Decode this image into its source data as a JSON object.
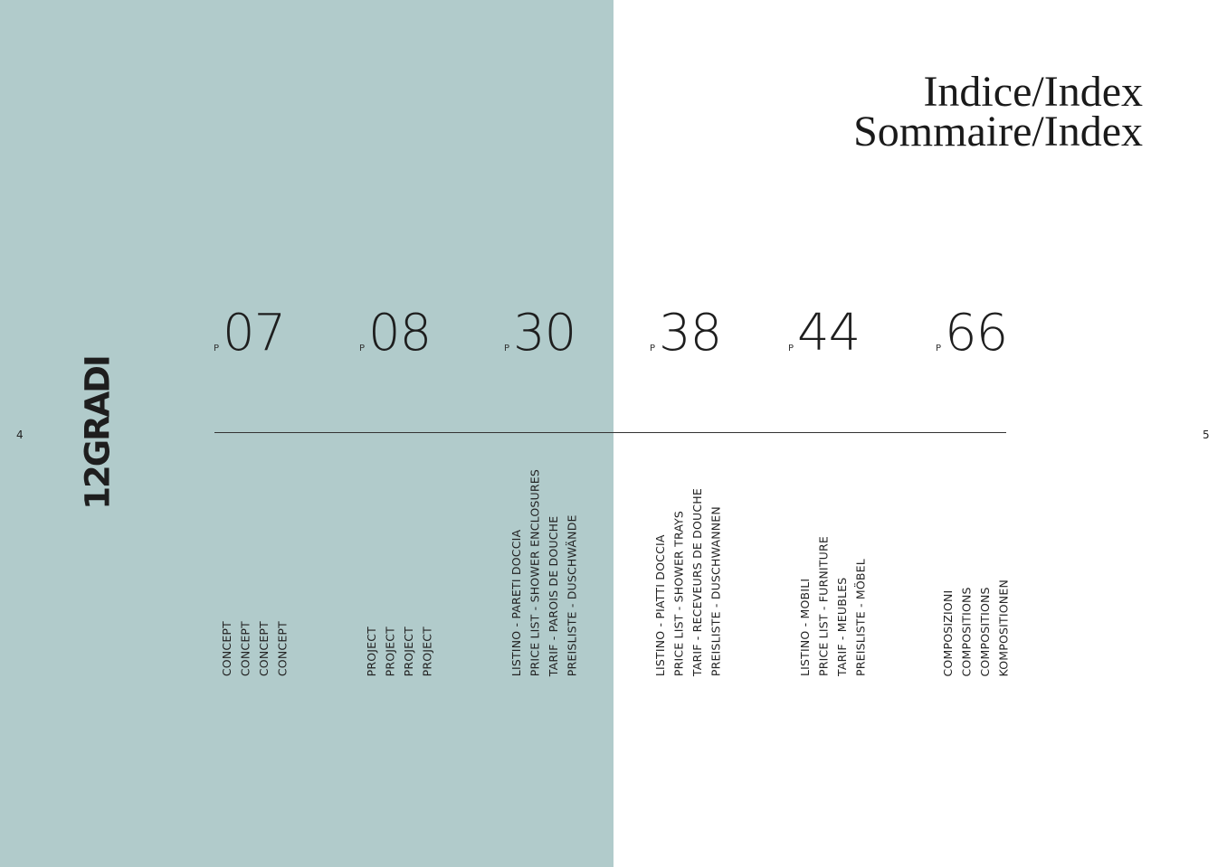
{
  "title": {
    "line1": "Indice/Index",
    "line2": "Sommaire/Index"
  },
  "brand": {
    "logo_text": "12GRADI"
  },
  "page_numbers": {
    "left": "4",
    "right": "5"
  },
  "colors": {
    "left_panel": "#b1cbcb",
    "text": "#1e1e1e"
  },
  "entries": [
    {
      "prefix": "P",
      "page": "07",
      "labels": [
        "CONCEPT",
        "CONCEPT",
        "CONCEPT",
        "CONCEPT"
      ]
    },
    {
      "prefix": "P",
      "page": "08",
      "labels": [
        "PROJECT",
        "PROJECT",
        "PROJECT",
        "PROJECT"
      ]
    },
    {
      "prefix": "P",
      "page": "30",
      "labels": [
        "LISTINO - PARETI DOCCIA",
        "PRICE LIST - SHOWER ENCLOSURES",
        "TARIF - PAROIS DE DOUCHE",
        "PREISLISTE - DUSCHWÄNDE"
      ]
    },
    {
      "prefix": "P",
      "page": "38",
      "labels": [
        "LISTINO - PIATTI DOCCIA",
        "PRICE LIST - SHOWER TRAYS",
        "TARIF - RECEVEURS DE DOUCHE",
        "PREISLISTE - DUSCHWANNEN"
      ]
    },
    {
      "prefix": "P",
      "page": "44",
      "labels": [
        "LISTINO - MOBILI",
        "PRICE LIST - FURNITURE",
        "TARIF - MEUBLES",
        "PREISLISTE - MÖBEL"
      ]
    },
    {
      "prefix": "P",
      "page": "66",
      "labels": [
        "COMPOSIZIONI",
        "COMPOSITIONS",
        "COMPOSITIONS",
        "KOMPOSITIONEN"
      ]
    }
  ]
}
